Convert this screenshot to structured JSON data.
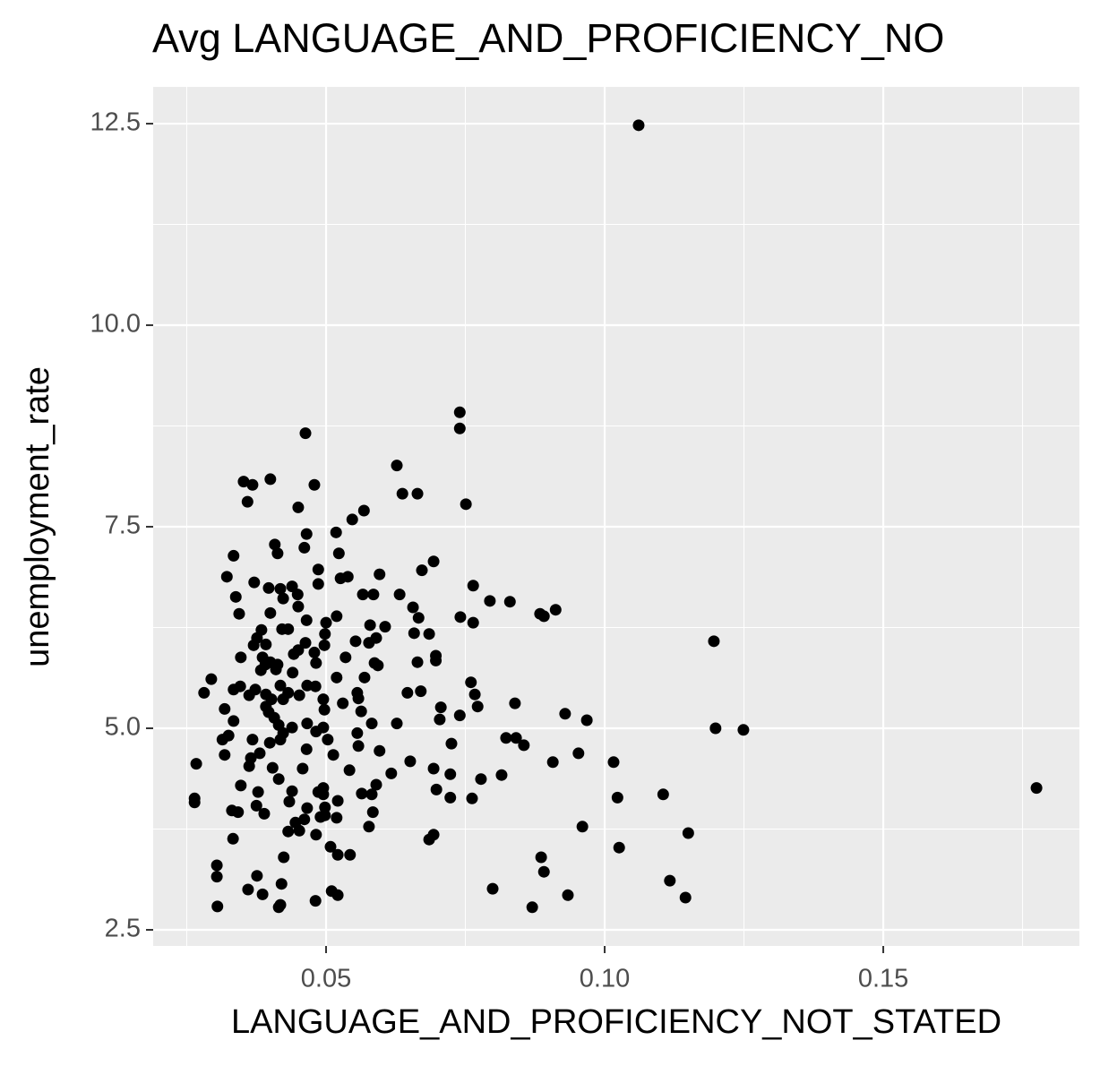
{
  "chart_data": {
    "type": "scatter",
    "title": "Avg LANGUAGE_AND_PROFICIENCY_NO",
    "x_label": "LANGUAGE_AND_PROFICIENCY_NOT_STATED",
    "y_label": "unemployment_rate",
    "color": "#000000",
    "grid": true,
    "minor_grid": true,
    "xlim": [
      0.01897,
      0.1852
    ],
    "ylim": [
      2.3,
      12.956
    ],
    "xticks": [
      0.05,
      {
        "value": 0.1,
        "label": "0.10"
      },
      0.15
    ],
    "yticks": [
      2.5,
      {
        "value": 5,
        "label": "5.0"
      },
      7.5,
      {
        "value": 10,
        "label": "10.0"
      },
      12.5
    ],
    "x": [
      0.1061,
      0.074,
      0.074,
      0.0463,
      0.0627,
      0.0352,
      0.0368,
      0.04,
      0.0479,
      0.0637,
      0.0664,
      0.0359,
      0.0751,
      0.045,
      0.0568,
      0.0547,
      0.0518,
      0.0465,
      0.0408,
      0.0461,
      0.0413,
      0.0334,
      0.0523,
      0.0693,
      0.0486,
      0.0672,
      0.0596,
      0.0322,
      0.0539,
      0.0526,
      0.0371,
      0.0486,
      0.0764,
      0.0397,
      0.0418,
      0.0439,
      0.0423,
      0.0449,
      0.0338,
      0.0566,
      0.0585,
      0.0632,
      0.0794,
      0.083,
      0.045,
      0.0656,
      0.0912,
      0.0884,
      0.0891,
      0.0344,
      0.04,
      0.0519,
      0.0666,
      0.0741,
      0.0764,
      0.0465,
      0.05,
      0.0579,
      0.0606,
      0.0421,
      0.0432,
      0.0384,
      0.0658,
      0.0685,
      0.0376,
      0.0498,
      0.1196,
      0.0392,
      0.0463,
      0.0553,
      0.0577,
      0.037,
      0.045,
      0.0479,
      0.0497,
      0.059,
      0.0697,
      0.0697,
      0.0347,
      0.0386,
      0.0442,
      0.0535,
      0.04,
      0.0391,
      0.0413,
      0.0482,
      0.0587,
      0.0664,
      0.0383,
      0.041,
      0.0593,
      0.0294,
      0.044,
      0.0519,
      0.0569,
      0.076,
      0.0346,
      0.0418,
      0.0466,
      0.0481,
      0.0281,
      0.0373,
      0.0334,
      0.0362,
      0.0392,
      0.0432,
      0.0452,
      0.0556,
      0.0558,
      0.0646,
      0.067,
      0.0767,
      0.0402,
      0.0423,
      0.0495,
      0.0839,
      0.053,
      0.0318,
      0.0392,
      0.0706,
      0.0772,
      0.0397,
      0.0563,
      0.0497,
      0.0929,
      0.074,
      0.0407,
      0.0704,
      0.0968,
      0.0334,
      0.0466,
      0.0582,
      0.0627,
      0.0415,
      0.0439,
      0.0495,
      0.1199,
      0.1249,
      0.0482,
      0.0423,
      0.0556,
      0.0325,
      0.0503,
      0.0314,
      0.0368,
      0.0418,
      0.0823,
      0.0841,
      0.0399,
      0.0725,
      0.0855,
      0.0558,
      0.0465,
      0.0596,
      0.0381,
      0.0953,
      0.0318,
      0.0513,
      0.0365,
      0.0651,
      0.0907,
      0.1016,
      0.0267,
      0.0362,
      0.0404,
      0.0458,
      0.0542,
      0.0693,
      0.0617,
      0.0723,
      0.0815,
      0.0415,
      0.0778,
      0.059,
      0.0347,
      0.1775,
      0.0495,
      0.0698,
      0.0486,
      0.0439,
      0.0378,
      0.0564,
      0.1105,
      0.0495,
      0.0582,
      0.0762,
      0.1023,
      0.0723,
      0.0264,
      0.0264,
      0.0521,
      0.0434,
      0.0375,
      0.0498,
      0.0466,
      0.0584,
      0.0331,
      0.0342,
      0.0389,
      0.0498,
      0.049,
      0.0519,
      0.0461,
      0.0445,
      0.0577,
      0.096,
      0.0432,
      0.0452,
      0.0482,
      0.115,
      0.0693,
      0.0685,
      0.0333,
      0.0508,
      0.1026,
      0.0521,
      0.0543,
      0.0424,
      0.0886,
      0.0304,
      0.0891,
      0.0376,
      0.0304,
      0.1117,
      0.042,
      0.036,
      0.0799,
      0.051,
      0.0386,
      0.0521,
      0.0934,
      0.1145,
      0.0481,
      0.0418,
      0.0415,
      0.0305,
      0.087
    ],
    "y": [
      12.48,
      8.92,
      8.72,
      8.66,
      8.26,
      8.06,
      8.02,
      8.09,
      8.02,
      7.91,
      7.91,
      7.81,
      7.78,
      7.74,
      7.7,
      7.59,
      7.43,
      7.41,
      7.28,
      7.24,
      7.17,
      7.14,
      7.17,
      7.07,
      6.97,
      6.96,
      6.91,
      6.88,
      6.88,
      6.86,
      6.81,
      6.79,
      6.77,
      6.74,
      6.73,
      6.76,
      6.61,
      6.66,
      6.63,
      6.66,
      6.66,
      6.66,
      6.58,
      6.57,
      6.51,
      6.5,
      6.47,
      6.42,
      6.39,
      6.42,
      6.43,
      6.39,
      6.37,
      6.38,
      6.31,
      6.34,
      6.31,
      6.28,
      6.26,
      6.23,
      6.23,
      6.22,
      6.18,
      6.17,
      6.12,
      6.17,
      6.08,
      6.04,
      6.06,
      6.08,
      6.06,
      6.03,
      5.97,
      5.94,
      6.03,
      6.12,
      5.9,
      5.84,
      5.88,
      5.88,
      5.92,
      5.88,
      5.82,
      5.79,
      5.79,
      5.81,
      5.81,
      5.82,
      5.72,
      5.73,
      5.78,
      5.61,
      5.69,
      5.63,
      5.63,
      5.57,
      5.52,
      5.53,
      5.53,
      5.52,
      5.44,
      5.48,
      5.48,
      5.41,
      5.42,
      5.44,
      5.41,
      5.44,
      5.37,
      5.44,
      5.46,
      5.42,
      5.36,
      5.36,
      5.36,
      5.31,
      5.31,
      5.24,
      5.27,
      5.26,
      5.27,
      5.2,
      5.21,
      5.23,
      5.18,
      5.16,
      5.13,
      5.11,
      5.1,
      5.09,
      5.06,
      5.06,
      5.06,
      5.04,
      5.01,
      5.01,
      5.0,
      4.98,
      4.96,
      4.94,
      4.94,
      4.91,
      4.86,
      4.86,
      4.86,
      4.86,
      4.88,
      4.88,
      4.82,
      4.81,
      4.79,
      4.78,
      4.74,
      4.72,
      4.69,
      4.69,
      4.67,
      4.67,
      4.63,
      4.59,
      4.58,
      4.58,
      4.56,
      4.53,
      4.51,
      4.5,
      4.48,
      4.5,
      4.44,
      4.43,
      4.42,
      4.37,
      4.37,
      4.3,
      4.29,
      4.26,
      4.26,
      4.24,
      4.21,
      4.22,
      4.21,
      4.19,
      4.18,
      4.18,
      4.18,
      4.13,
      4.14,
      4.14,
      4.13,
      4.08,
      4.1,
      4.09,
      4.04,
      4.02,
      4.01,
      3.96,
      3.98,
      3.96,
      3.94,
      3.92,
      3.9,
      3.89,
      3.87,
      3.83,
      3.78,
      3.78,
      3.72,
      3.73,
      3.68,
      3.7,
      3.68,
      3.62,
      3.63,
      3.53,
      3.52,
      3.43,
      3.43,
      3.4,
      3.4,
      3.3,
      3.22,
      3.17,
      3.16,
      3.11,
      3.07,
      3.0,
      3.01,
      2.98,
      2.94,
      2.93,
      2.93,
      2.9,
      2.86,
      2.81,
      2.78,
      2.79,
      2.78
    ]
  }
}
